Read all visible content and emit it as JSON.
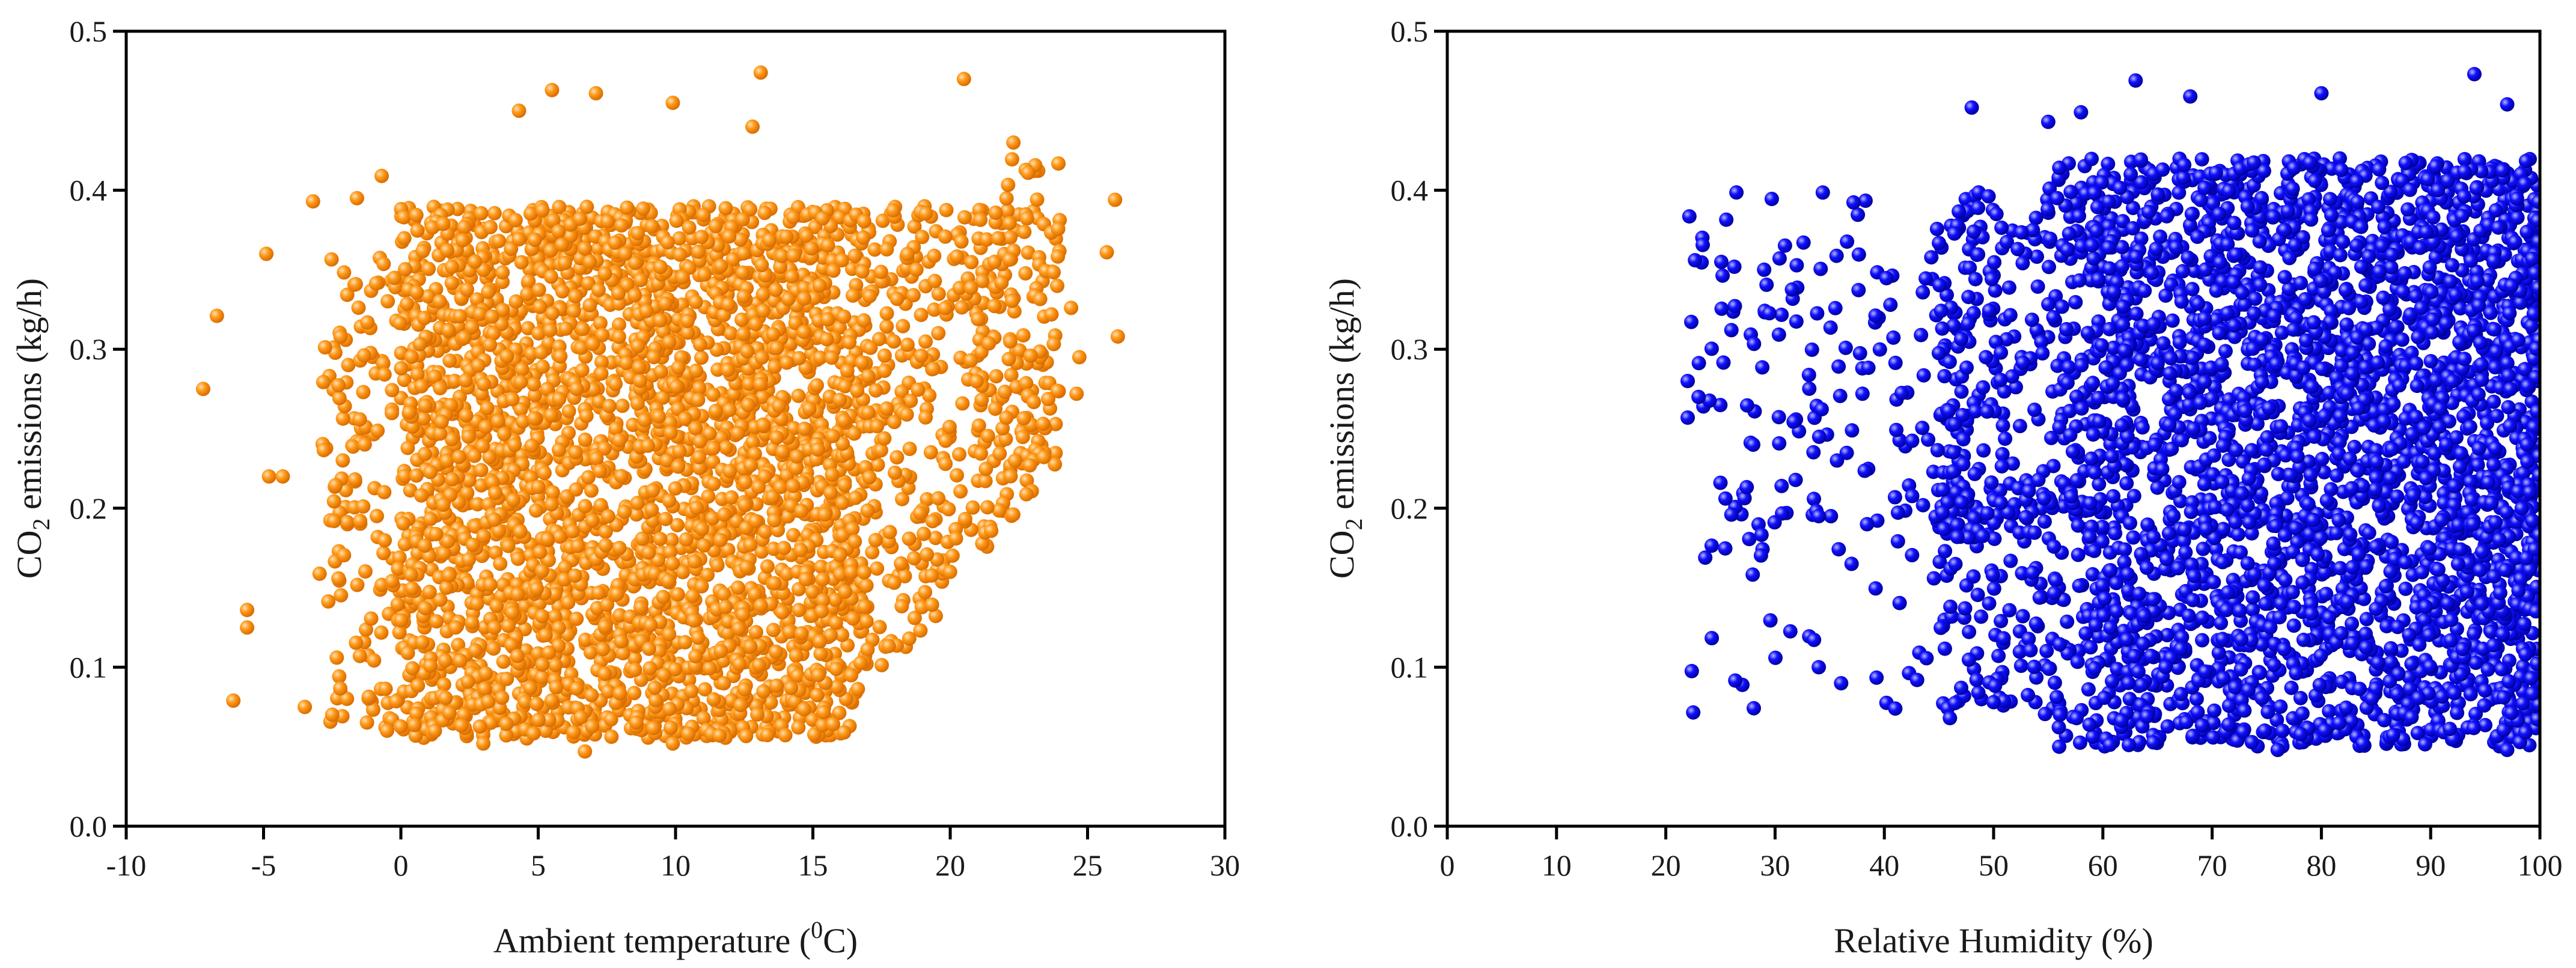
{
  "figure": {
    "background": "#ffffff"
  },
  "chart_data": [
    {
      "type": "scatter",
      "color": "#ff8c00",
      "highlight_color": "#ffe2b8",
      "xlabel_main": "Ambient temperature (",
      "xlabel_sup": "0",
      "xlabel_end": "C)",
      "ylabel_main": "CO",
      "ylabel_sub": "2",
      "ylabel_end": " emissions (kg/h)",
      "xlim": [
        -10,
        30
      ],
      "ylim": [
        0.0,
        0.5
      ],
      "xticks": [
        -10,
        -5,
        0,
        5,
        10,
        15,
        20,
        25,
        30
      ],
      "xtick_labels": [
        "-10",
        "-5",
        "0",
        "5",
        "10",
        "15",
        "20",
        "25",
        "30"
      ],
      "yticks": [
        0.0,
        0.1,
        0.2,
        0.3,
        0.4,
        0.5
      ],
      "ytick_labels": [
        "0.0",
        "0.1",
        "0.2",
        "0.3",
        "0.4",
        "0.5"
      ],
      "points_note": "dense cloud of several thousand observations",
      "point_count": 3500,
      "dense_region": {
        "x_range": [
          0,
          17
        ],
        "y_range": [
          0.05,
          0.39
        ]
      },
      "sample_points": [
        {
          "x": -7.2,
          "y": 0.275
        },
        {
          "x": -6.7,
          "y": 0.321
        },
        {
          "x": -6.1,
          "y": 0.079
        },
        {
          "x": -5.6,
          "y": 0.136
        },
        {
          "x": -5.6,
          "y": 0.125
        },
        {
          "x": -4.9,
          "y": 0.36
        },
        {
          "x": -4.8,
          "y": 0.22
        },
        {
          "x": -4.3,
          "y": 0.22
        },
        {
          "x": -3.5,
          "y": 0.075
        },
        {
          "x": -3.2,
          "y": 0.393
        },
        {
          "x": -1.6,
          "y": 0.395
        },
        {
          "x": -0.7,
          "y": 0.409
        },
        {
          "x": 4.3,
          "y": 0.45
        },
        {
          "x": 5.5,
          "y": 0.463
        },
        {
          "x": 7.1,
          "y": 0.461
        },
        {
          "x": 9.9,
          "y": 0.455
        },
        {
          "x": 13.1,
          "y": 0.474
        },
        {
          "x": 12.8,
          "y": 0.44
        },
        {
          "x": 20.5,
          "y": 0.47
        },
        {
          "x": 22.3,
          "y": 0.43
        },
        {
          "x": 22.9,
          "y": 0.227
        },
        {
          "x": 24.4,
          "y": 0.326
        },
        {
          "x": 24.7,
          "y": 0.295
        },
        {
          "x": 24.6,
          "y": 0.272
        },
        {
          "x": 25.7,
          "y": 0.361
        },
        {
          "x": 26.1,
          "y": 0.308
        },
        {
          "x": 26.0,
          "y": 0.394
        },
        {
          "x": 6.7,
          "y": 0.047
        },
        {
          "x": 9.9,
          "y": 0.052
        },
        {
          "x": 3.0,
          "y": 0.052
        },
        {
          "x": 17.8,
          "y": 0.185
        },
        {
          "x": 18.9,
          "y": 0.197
        },
        {
          "x": 15.2,
          "y": 0.095
        }
      ]
    },
    {
      "type": "scatter",
      "color": "#0000ee",
      "highlight_color": "#b8b8ff",
      "xlabel_main": "Relative Humidity (%)",
      "ylabel_main": "CO",
      "ylabel_sub": "2",
      "ylabel_end": " emissions (kg/h)",
      "xlim": [
        0,
        100
      ],
      "ylim": [
        0.0,
        0.5
      ],
      "xticks": [
        0,
        10,
        20,
        30,
        40,
        50,
        60,
        70,
        80,
        90,
        100
      ],
      "xtick_labels": [
        "0",
        "10",
        "20",
        "30",
        "40",
        "50",
        "60",
        "70",
        "80",
        "90",
        "100"
      ],
      "yticks": [
        0.0,
        0.1,
        0.2,
        0.3,
        0.4,
        0.5
      ],
      "ytick_labels": [
        "0.0",
        "0.1",
        "0.2",
        "0.3",
        "0.4",
        "0.5"
      ],
      "points_note": "dense cloud of several thousand observations",
      "point_count": 3500,
      "dense_region": {
        "x_range": [
          50,
          100
        ],
        "y_range": [
          0.05,
          0.42
        ]
      },
      "sample_points": [
        {
          "x": 22,
          "y": 0.28
        },
        {
          "x": 22,
          "y": 0.257
        },
        {
          "x": 23,
          "y": 0.27
        },
        {
          "x": 25,
          "y": 0.216
        },
        {
          "x": 26,
          "y": 0.196
        },
        {
          "x": 26,
          "y": 0.312
        },
        {
          "x": 28,
          "y": 0.24
        },
        {
          "x": 29,
          "y": 0.35
        },
        {
          "x": 34,
          "y": 0.1
        },
        {
          "x": 34,
          "y": 0.195
        },
        {
          "x": 37,
          "y": 0.165
        },
        {
          "x": 41,
          "y": 0.074
        },
        {
          "x": 43,
          "y": 0.092
        },
        {
          "x": 46,
          "y": 0.068
        },
        {
          "x": 48,
          "y": 0.452
        },
        {
          "x": 55,
          "y": 0.443
        },
        {
          "x": 58,
          "y": 0.449
        },
        {
          "x": 63,
          "y": 0.469
        },
        {
          "x": 68,
          "y": 0.459
        },
        {
          "x": 80,
          "y": 0.461
        },
        {
          "x": 94,
          "y": 0.473
        },
        {
          "x": 97,
          "y": 0.454
        },
        {
          "x": 76,
          "y": 0.048
        },
        {
          "x": 97,
          "y": 0.048
        },
        {
          "x": 56,
          "y": 0.05
        },
        {
          "x": 50,
          "y": 0.078
        },
        {
          "x": 38,
          "y": 0.272
        }
      ]
    }
  ]
}
